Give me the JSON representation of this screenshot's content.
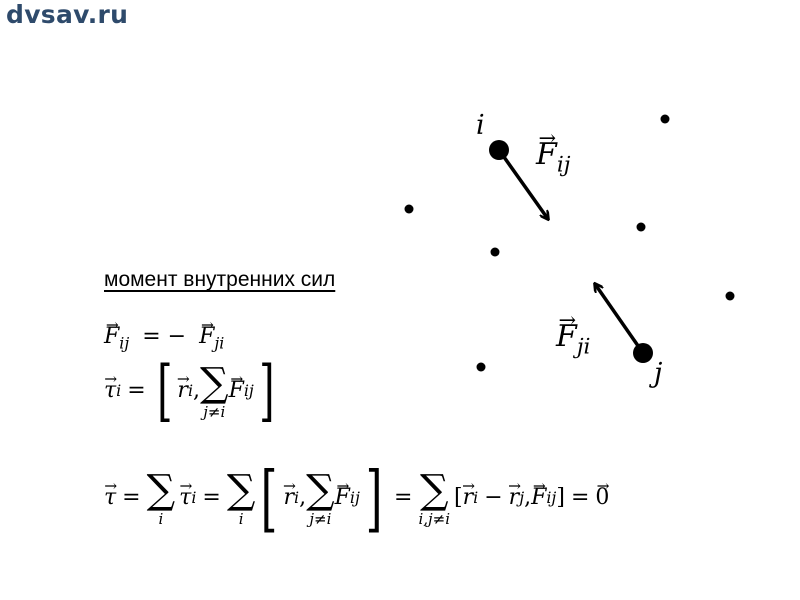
{
  "site": {
    "logo_text": "dvsav.ru"
  },
  "diagram": {
    "labels": {
      "point_i": "i",
      "point_j": "j",
      "force_ij": "F",
      "force_ij_sub": "ij",
      "force_ji": "F",
      "force_ji_sub": "ji"
    }
  },
  "content": {
    "heading": "момент внутренних сил",
    "eq1": {
      "lhs": "F",
      "lhs_sub": "ij",
      "op": "= −",
      "rhs": "F",
      "rhs_sub": "ji"
    },
    "eq2": {
      "lhs": "τ",
      "lhs_sub": "i",
      "r": "r",
      "r_sub": "i",
      "sum_limit": "j≠i",
      "f": "F",
      "f_sub": "ij"
    },
    "eq3": {
      "tau": "τ",
      "sum1_limit": "i",
      "tau_i": "τ",
      "tau_i_sub": "i",
      "sum2_limit": "i",
      "r": "r",
      "r_sub": "i",
      "sum3_limit": "j≠i",
      "f": "F",
      "f_sub": "ij",
      "sum4_limit": "i,j≠i",
      "r_i": "r",
      "r_i_sub": "i",
      "minus": "−",
      "r_j": "r",
      "r_j_sub": "j",
      "f2": "F",
      "f2_sub": "ij",
      "zero": "0"
    }
  }
}
